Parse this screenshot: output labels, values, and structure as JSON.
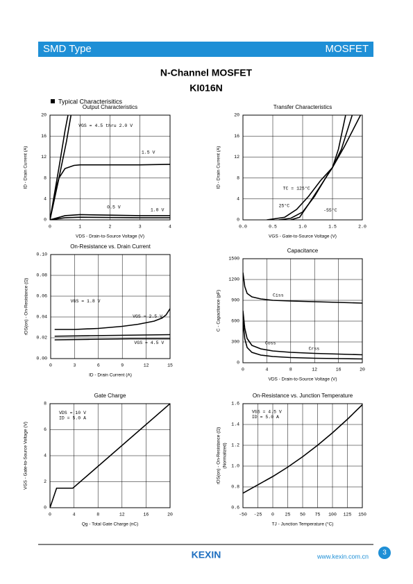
{
  "header": {
    "left": "SMD Type",
    "right": "MOSFET"
  },
  "title": "N-Channel MOSFET",
  "part": "KI016N",
  "section": "Typical Characterisitics",
  "chart_data": [
    {
      "type": "line",
      "title": "Output Characteristics",
      "xlabel": "VDS - Drain-to-Source Voltage (V)",
      "ylabel": "ID - Drain Current (A)",
      "xlim": [
        0,
        4
      ],
      "xticks": [
        0,
        1,
        2,
        3,
        4
      ],
      "ylim": [
        0,
        20
      ],
      "yticks": [
        0,
        4,
        8,
        12,
        16,
        20
      ],
      "grid": true,
      "color": "#000000",
      "series": [
        {
          "x": [
            0,
            0.3,
            0.5,
            0.6
          ],
          "values": [
            0,
            10,
            17,
            20
          ]
        },
        {
          "x": [
            0,
            0.3,
            0.55,
            0.7
          ],
          "values": [
            0,
            8,
            15,
            20
          ]
        },
        {
          "x": [
            0,
            0.1,
            0.2,
            0.3,
            0.5,
            0.8,
            1,
            2,
            3,
            4
          ],
          "values": [
            0,
            3,
            6,
            8,
            9.8,
            10.4,
            10.5,
            10.5,
            10.5,
            10.6
          ]
        },
        {
          "x": [
            0,
            0.5,
            1,
            2,
            3,
            4
          ],
          "values": [
            0,
            0.8,
            1,
            0.9,
            0.8,
            0.8
          ]
        },
        {
          "x": [
            0,
            0.5,
            1,
            2,
            3,
            4
          ],
          "values": [
            0,
            0.4,
            0.5,
            0.45,
            0.4,
            0.4
          ]
        }
      ],
      "annotations": [
        {
          "text": "VGS = 4.5 thru 2.0 V",
          "x": 0.95,
          "y": 18
        },
        {
          "text": "1.5 V",
          "x": 3.05,
          "y": 12.9
        },
        {
          "text": "0.5 V",
          "x": 1.9,
          "y": 2.4
        },
        {
          "text": "1.0 V",
          "x": 3.35,
          "y": 1.9
        }
      ]
    },
    {
      "type": "line",
      "title": "Transfer Characteristics",
      "xlabel": "VGS - Gate-to-Source Voltage (V)",
      "ylabel": "ID - Drain Current (A)",
      "xlim": [
        0,
        2
      ],
      "xticks": [
        {
          "value": 0,
          "label": "0.0"
        },
        0.5,
        {
          "value": 1,
          "label": "1.0"
        },
        1.5,
        {
          "value": 2,
          "label": "2.0"
        }
      ],
      "ylim": [
        0,
        20
      ],
      "yticks": [
        0,
        4,
        8,
        12,
        16,
        20
      ],
      "grid": true,
      "color": "#000000",
      "series": [
        {
          "x": [
            0.4,
            0.7,
            0.9,
            1.1,
            1.3,
            1.5,
            1.7,
            1.97
          ],
          "values": [
            0,
            0.5,
            2,
            4.5,
            7.5,
            10,
            14,
            20
          ]
        },
        {
          "x": [
            0.6,
            0.8,
            1.0,
            1.2,
            1.4,
            1.5,
            1.65,
            1.83
          ],
          "values": [
            0,
            0.3,
            1.5,
            4.5,
            8.3,
            10,
            13.5,
            20
          ]
        },
        {
          "x": [
            0.8,
            0.95,
            1.1,
            1.3,
            1.5,
            1.6,
            1.72
          ],
          "values": [
            0,
            0.5,
            3,
            6.5,
            10,
            13.5,
            20
          ]
        }
      ],
      "annotations": [
        {
          "text": "TC = 125°C",
          "x": 0.67,
          "y": 6
        },
        {
          "text": "25°C",
          "x": 0.6,
          "y": 2.7
        },
        {
          "text": "-55°C",
          "x": 1.35,
          "y": 1.8
        }
      ]
    },
    {
      "type": "line",
      "title": "On-Resistance vs. Drain Current",
      "xlabel": "ID - Drain Current (A)",
      "ylabel": "rDS(on) - On-Resistance (Ω)",
      "xlim": [
        0,
        15
      ],
      "xticks": [
        0,
        3,
        6,
        9,
        12,
        15
      ],
      "ylim": [
        0,
        0.1
      ],
      "yticks": [
        {
          "value": 0,
          "label": "0.00"
        },
        0.02,
        0.04,
        0.06,
        0.08,
        {
          "value": 0.1,
          "label": "0.10"
        }
      ],
      "grid": true,
      "color": "#000000",
      "series": [
        {
          "x": [
            0.5,
            3,
            6,
            9,
            11,
            13,
            14,
            14.5,
            15
          ],
          "values": [
            0.028,
            0.028,
            0.029,
            0.031,
            0.033,
            0.036,
            0.039,
            0.042,
            0.048
          ]
        },
        {
          "x": [
            0.5,
            5,
            10,
            15
          ],
          "values": [
            0.0215,
            0.022,
            0.0225,
            0.023
          ]
        },
        {
          "x": [
            0.5,
            5,
            10,
            15
          ],
          "values": [
            0.018,
            0.0185,
            0.019,
            0.019
          ]
        }
      ],
      "annotations": [
        {
          "text": "VGS = 1.8 V",
          "x": 2.5,
          "y": 0.055
        },
        {
          "text": "VGS = 2.5 V",
          "x": 10.3,
          "y": 0.0405
        },
        {
          "text": "VGS = 4.5 V",
          "x": 10.5,
          "y": 0.015
        }
      ]
    },
    {
      "type": "line",
      "title": "Capacitance",
      "xlabel": "VDS - Drain-to-Source Voltage (V)",
      "ylabel": "C - Capacitance (pF)",
      "xlim": [
        0,
        20
      ],
      "xticks": [
        0,
        4,
        8,
        12,
        16,
        20
      ],
      "ylim": [
        0,
        1500
      ],
      "yticks": [
        0,
        300,
        600,
        900,
        1200,
        1500
      ],
      "grid": true,
      "color": "#000000",
      "series": [
        {
          "x": [
            0,
            0.3,
            0.7,
            1.5,
            3,
            5,
            8,
            12,
            16,
            20
          ],
          "values": [
            1300,
            1100,
            1000,
            950,
            920,
            900,
            890,
            880,
            870,
            860
          ]
        },
        {
          "x": [
            0,
            0.3,
            0.7,
            1.5,
            3,
            5,
            8,
            12,
            16,
            20
          ],
          "values": [
            750,
            500,
            350,
            250,
            200,
            170,
            150,
            135,
            125,
            115
          ]
        },
        {
          "x": [
            0,
            0.3,
            0.7,
            1.5,
            3,
            5,
            8,
            12,
            16,
            20
          ],
          "values": [
            600,
            350,
            220,
            150,
            110,
            90,
            75,
            65,
            60,
            55
          ]
        }
      ],
      "annotations": [
        {
          "text": "Ciss",
          "x": 5,
          "y": 970
        },
        {
          "text": "Coss",
          "x": 3.7,
          "y": 280
        },
        {
          "text": "Crss",
          "x": 11,
          "y": 200
        }
      ]
    },
    {
      "type": "line",
      "title": "Gate Charge",
      "xlabel": "Qg - Total Gate Charge (nC)",
      "ylabel": "VGS - Gate-to-Source Voltage (V)",
      "xlim": [
        0,
        20
      ],
      "xticks": [
        0,
        4,
        8,
        12,
        16,
        20
      ],
      "ylim": [
        0,
        8
      ],
      "yticks": [
        0,
        2,
        4,
        6,
        8
      ],
      "grid": true,
      "color": "#000000",
      "series": [
        {
          "x": [
            0,
            1.1,
            3.8,
            20
          ],
          "values": [
            0,
            1.5,
            1.5,
            8
          ]
        }
      ],
      "annotations": [
        {
          "text": "VDS = 10 V",
          "x": 1.5,
          "y": 7.3
        },
        {
          "text": "ID = 5.0 A",
          "x": 1.5,
          "y": 6.9
        }
      ]
    },
    {
      "type": "line",
      "title": "On-Resistance vs. Junction Temperature",
      "xlabel": "TJ - Junction Temperature (°C)",
      "ylabel": "rDS(on) - On-Resistance (Ω)",
      "ylabel_note": "(Normalized)",
      "xlim": [
        -50,
        150
      ],
      "xticks": [
        -50,
        -25,
        0,
        25,
        50,
        75,
        100,
        125,
        150
      ],
      "ylim": [
        0.6,
        1.6
      ],
      "yticks": [
        0.6,
        0.8,
        {
          "value": 1,
          "label": "1.0"
        },
        1.2,
        1.4,
        1.6
      ],
      "grid": true,
      "color": "#000000",
      "series": [
        {
          "x": [
            -50,
            0,
            25,
            50,
            75,
            100,
            125,
            150
          ],
          "values": [
            0.74,
            0.9,
            0.99,
            1.09,
            1.2,
            1.32,
            1.45,
            1.59
          ]
        }
      ],
      "annotations": [
        {
          "text": "VGS = 4.5 V",
          "x": -35,
          "y": 1.52
        },
        {
          "text": "ID = 5.0 A",
          "x": -35,
          "y": 1.47
        }
      ]
    }
  ],
  "footer": {
    "logo": "KEXIN",
    "url": "www.kexin.com.cn",
    "page": "3"
  }
}
